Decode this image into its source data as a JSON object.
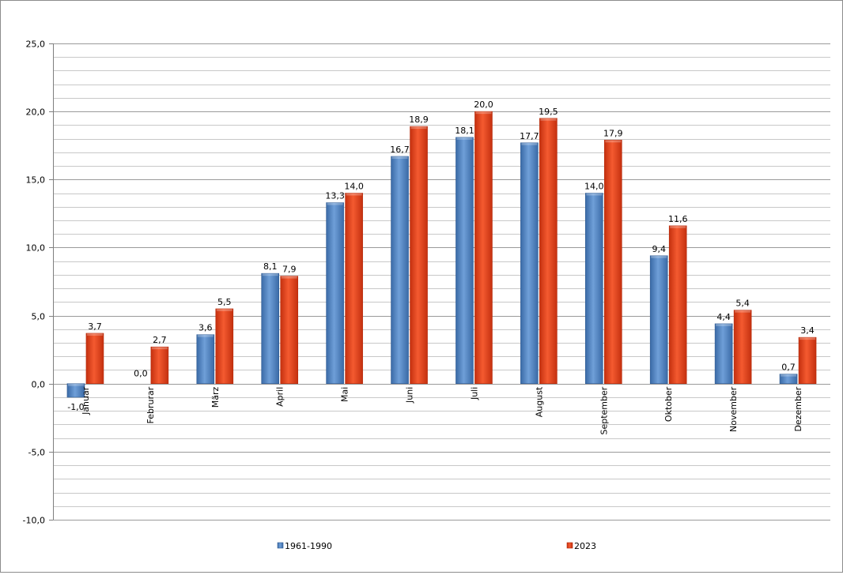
{
  "chart_data": {
    "type": "bar",
    "categories": [
      "Januar",
      "Februrar",
      "März",
      "April",
      "Mai",
      "Juni",
      "Juli",
      "August",
      "September",
      "Oktober",
      "November",
      "Dezember"
    ],
    "series": [
      {
        "name": "1961-1990",
        "color": "#4f81bd",
        "values": [
          -1.0,
          0.0,
          3.6,
          8.1,
          13.3,
          16.7,
          18.1,
          17.7,
          14.0,
          9.4,
          4.4,
          0.7
        ],
        "labels": [
          "-1,0",
          "0,0",
          "3,6",
          "8,1",
          "13,3",
          "16,7",
          "18,1",
          "17,7",
          "14,0",
          "9,4",
          "4,4",
          "0,7"
        ]
      },
      {
        "name": "2023",
        "color": "#e8401c",
        "values": [
          3.7,
          2.7,
          5.5,
          7.9,
          14.0,
          18.9,
          20.0,
          19.5,
          17.9,
          11.6,
          5.4,
          3.4
        ],
        "labels": [
          "3,7",
          "2,7",
          "5,5",
          "7,9",
          "14,0",
          "18,9",
          "20,0",
          "19,5",
          "17,9",
          "11,6",
          "5,4",
          "3,4"
        ]
      }
    ],
    "y_ticks": [
      -10,
      -5,
      0,
      5,
      10,
      15,
      20,
      25
    ],
    "y_tick_labels": [
      "-10,0",
      "-5,0",
      "0,0",
      "5,0",
      "10,0",
      "15,0",
      "20,0",
      "25,0"
    ],
    "ylim": [
      -10,
      25
    ],
    "grid": true,
    "minor_grid_step": 1,
    "legend_position": "bottom"
  }
}
